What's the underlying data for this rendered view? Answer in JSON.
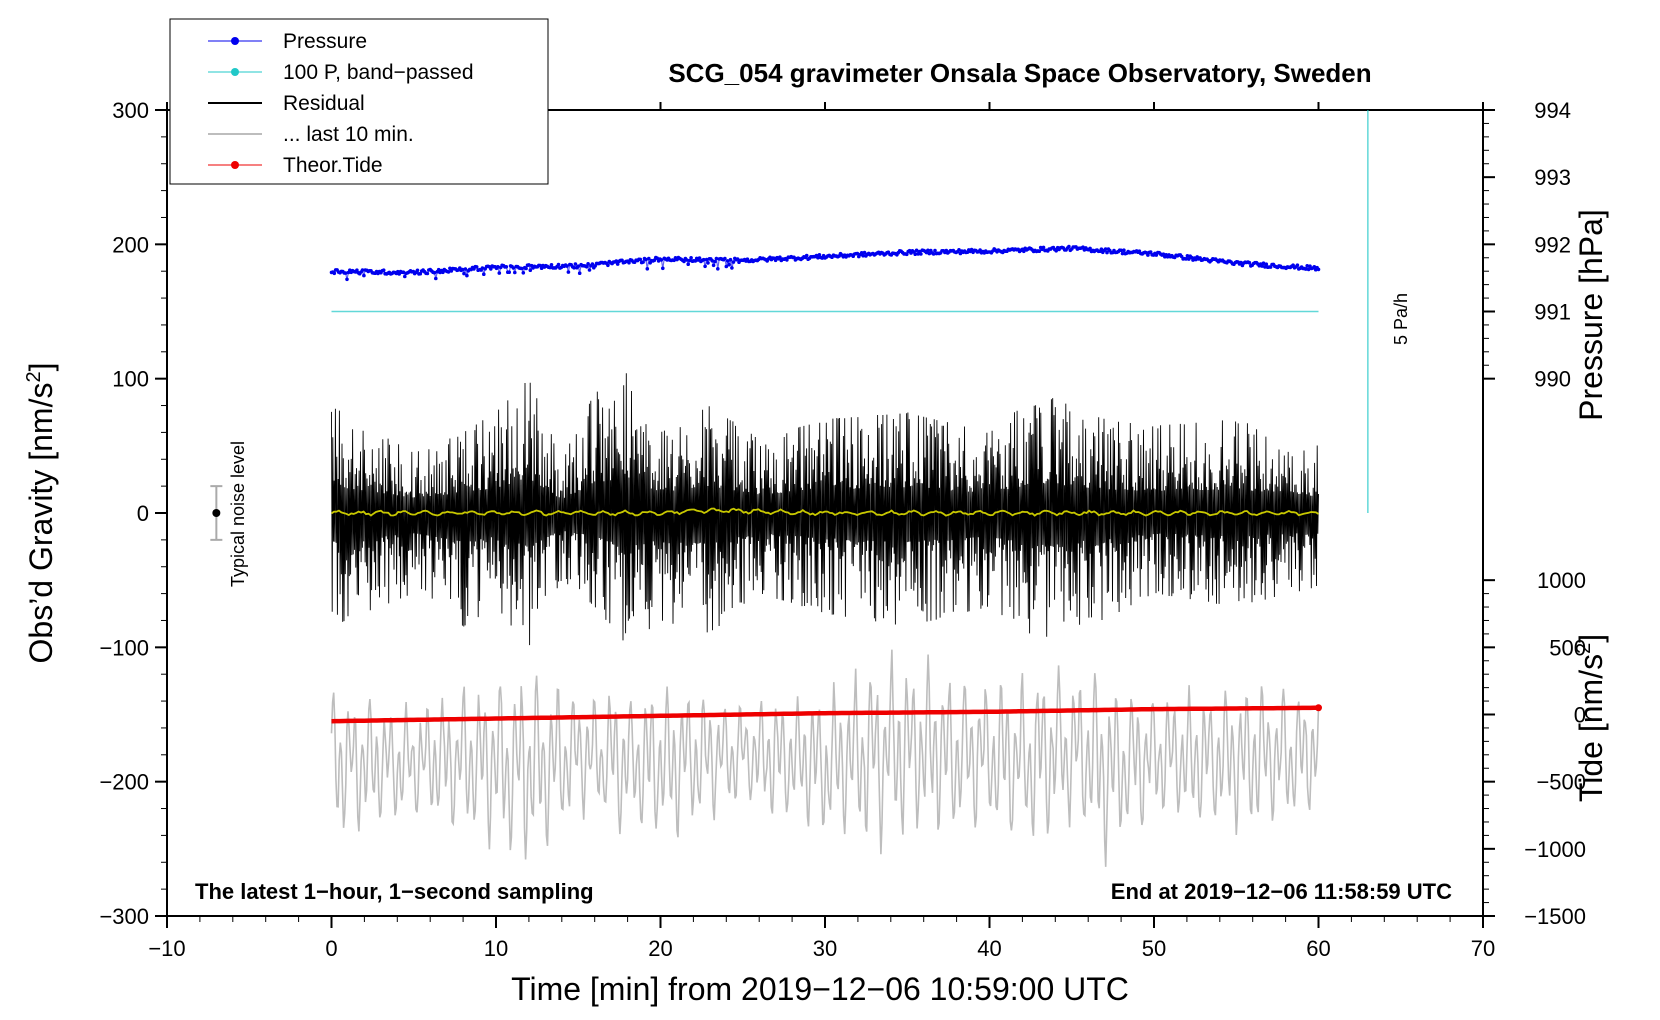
{
  "chart_data": {
    "type": "line",
    "title": "SCG_054 gravimeter Onsala Space Observatory, Sweden",
    "xlabel": "Time [min] from 2019−12−06 10:59:00 UTC",
    "ylabel_left_main": "Obs’d Gravity [nm/s",
    "ylabel_left_sup": "2",
    "ylabel_left_close": "]",
    "ylabel_right_pressure": "Pressure [hPa]",
    "ylabel_right_tide_main": "Tide [nm/s",
    "ylabel_right_tide_sup": "2",
    "ylabel_right_tide_close": "]",
    "xlim": [
      -10,
      70
    ],
    "ylim": [
      -300,
      300
    ],
    "x_ticks": [
      -10,
      0,
      10,
      20,
      30,
      40,
      50,
      60,
      70
    ],
    "x_tick_labels": [
      "−10",
      "0",
      "10",
      "20",
      "30",
      "40",
      "50",
      "60",
      "70"
    ],
    "y_ticks": [
      -300,
      -200,
      -100,
      0,
      100,
      200,
      300
    ],
    "y_tick_labels": [
      "−300",
      "−200",
      "−100",
      "0",
      "100",
      "200",
      "300"
    ],
    "pressure_ticks": [
      990,
      991,
      992,
      993,
      994
    ],
    "pressure_tick_labels": [
      "990",
      "991",
      "992",
      "993",
      "994"
    ],
    "pressure_axis_map": {
      "value_at_gravity_0": 988.0,
      "gravity_per_hpa": 50
    },
    "tide_ticks": [
      -1500,
      -1000,
      -500,
      0,
      500,
      1000
    ],
    "tide_tick_labels": [
      "−1500",
      "−1000",
      "−500",
      "0",
      "500",
      "1000"
    ],
    "tide_axis_map": {
      "gravity_offset": -150,
      "gravity_per_nms2": 0.1
    },
    "note_left": "The latest 1−hour, 1−second sampling",
    "note_right": "End at 2019−12−06 11:58:59 UTC",
    "noise_label": "Typical noise level",
    "noise_level": {
      "x": -7,
      "center": 0,
      "half_range": 20
    },
    "scale_bar": {
      "label": "5 Pa/h",
      "x": 63,
      "y_from": 0,
      "y_to": 300
    },
    "legend": [
      {
        "label": "Pressure",
        "color": "#0000ee",
        "marker": true
      },
      {
        "label": "100 P, band−passed",
        "color": "#20c8c8",
        "marker": true
      },
      {
        "label": "Residual",
        "color": "#000000",
        "marker": false
      },
      {
        "label": "... last 10 min.",
        "color": "#bdbdbd",
        "marker": false
      },
      {
        "label": "Theor.Tide",
        "color": "#ee0000",
        "marker": true
      }
    ],
    "series": [
      {
        "name": "Pressure",
        "color": "#0000ee",
        "x": [
          0,
          5,
          10,
          15,
          20,
          25,
          30,
          35,
          40,
          45,
          50,
          55,
          60
        ],
        "values": [
          180,
          179,
          183,
          184,
          189,
          188,
          191,
          194,
          195,
          197,
          193,
          186,
          182
        ]
      },
      {
        "name": "100 P, band−passed",
        "color": "#20c8c8",
        "x": [
          0,
          60
        ],
        "values": [
          150,
          150
        ]
      },
      {
        "name": "Residual",
        "color": "#000000",
        "x_range": [
          0,
          60
        ],
        "amplitude_envelope": {
          "x": [
            0,
            5,
            8,
            10,
            12,
            14,
            16,
            18,
            20,
            23,
            26,
            30,
            35,
            40,
            43,
            45,
            47,
            50,
            55,
            60
          ],
          "max": [
            80,
            45,
            60,
            75,
            100,
            40,
            90,
            105,
            60,
            80,
            55,
            70,
            75,
            60,
            90,
            80,
            70,
            65,
            70,
            50
          ],
          "min": [
            -85,
            -60,
            -85,
            -70,
            -100,
            -50,
            -70,
            -100,
            -80,
            -90,
            -60,
            -75,
            -85,
            -70,
            -95,
            -85,
            -80,
            -60,
            -70,
            -55
          ]
        }
      },
      {
        "name": "Band-passed residual",
        "color": "#c8c800",
        "x": [
          0,
          10,
          20,
          23,
          30,
          40,
          50,
          60
        ],
        "values": [
          0,
          0,
          0,
          2,
          0,
          0,
          0,
          0
        ]
      },
      {
        "name": "... last 10 min.",
        "color": "#bdbdbd",
        "x_range": [
          0,
          60
        ],
        "center": -170,
        "amplitude_envelope": {
          "x": [
            0,
            5,
            10,
            12,
            15,
            20,
            25,
            30,
            33,
            35,
            40,
            42,
            45,
            47,
            50,
            55,
            60
          ],
          "max": [
            -125,
            -140,
            -115,
            -110,
            -130,
            -125,
            -135,
            -130,
            -100,
            -100,
            -120,
            -115,
            -110,
            -115,
            -130,
            -120,
            -130
          ],
          "min": [
            -250,
            -230,
            -255,
            -270,
            -230,
            -250,
            -220,
            -245,
            -255,
            -250,
            -245,
            -255,
            -240,
            -265,
            -230,
            -245,
            -225
          ]
        }
      },
      {
        "name": "Theor.Tide",
        "color": "#ee0000",
        "x": [
          0,
          10,
          20,
          30,
          40,
          50,
          60
        ],
        "values": [
          -155,
          -153,
          -151,
          -149,
          -148,
          -146,
          -145
        ]
      }
    ]
  }
}
